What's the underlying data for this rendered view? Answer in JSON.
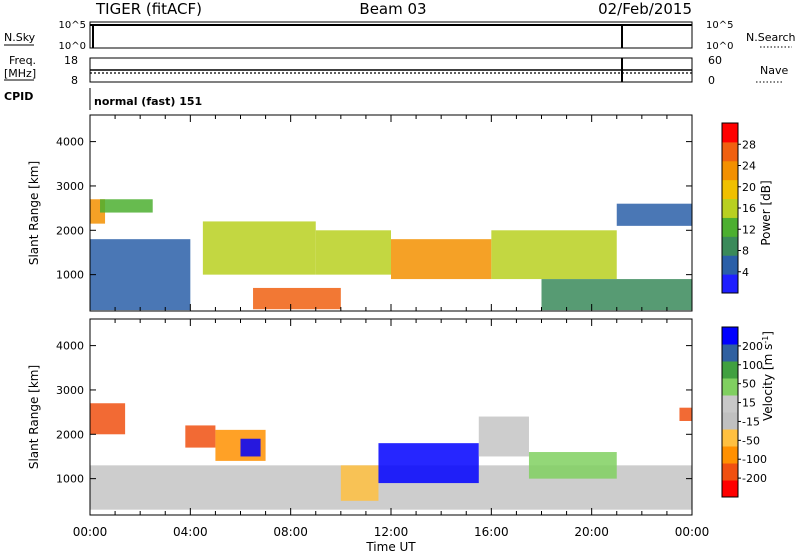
{
  "header": {
    "station": "TIGER (fitACF)",
    "beam": "Beam 03",
    "date": "02/Feb/2015"
  },
  "strip_labels": {
    "nsky": "N.Sky",
    "nsky_top": "10^5",
    "nsky_bottom": "10^0",
    "freq_line1": "Freq.",
    "freq_line2": "[MHz]",
    "freq_top": "18",
    "freq_bottom": "8",
    "nsearch": "N.Search",
    "nsearch_top": "10^5",
    "nsearch_bottom": "10^0",
    "nave": "Nave",
    "nave_top": "60",
    "nave_bottom": "0",
    "cpid": "CPID",
    "cpid_value": "normal (fast) 151"
  },
  "colors": {
    "power_scale": [
      "#1f1fff",
      "#2a5fa8",
      "#3a8a5a",
      "#4caf30",
      "#b8d020",
      "#f0c000",
      "#f39000",
      "#f06010",
      "#ff0000"
    ],
    "velocity_scale": [
      "#ff0000",
      "#f05010",
      "#ff9000",
      "#ffc040",
      "#c0c0c0",
      "#c8c8c8",
      "#80d060",
      "#40a040",
      "#3060a0",
      "#0000ff"
    ],
    "ground_scatter": "#c4c4c4"
  },
  "chart_data": [
    {
      "type": "heatmap",
      "title": "Power [dB]",
      "xlabel": "Time UT",
      "ylabel": "Slant Range [km]",
      "xlim": [
        0,
        24
      ],
      "ylim": [
        180,
        4600
      ],
      "x_ticks": [
        "00:00",
        "04:00",
        "08:00",
        "12:00",
        "16:00",
        "20:00",
        "00:00"
      ],
      "y_ticks": [
        1000,
        2000,
        3000,
        4000
      ],
      "colorbar": {
        "label": "Power [dB]",
        "ticks": [
          4,
          8,
          12,
          16,
          20,
          24,
          28
        ],
        "range": [
          0,
          30
        ]
      },
      "echo_regions": [
        {
          "t": [
            0.0,
            0.6
          ],
          "r": [
            2150,
            2700
          ],
          "value": 20
        },
        {
          "t": [
            0.4,
            2.5
          ],
          "r": [
            2400,
            2700
          ],
          "value": 10
        },
        {
          "t": [
            0.0,
            4.0
          ],
          "r": [
            200,
            1800
          ],
          "value": 6
        },
        {
          "t": [
            4.5,
            9.0
          ],
          "r": [
            1000,
            2200
          ],
          "value": 14
        },
        {
          "t": [
            6.5,
            10.0
          ],
          "r": [
            220,
            700
          ],
          "value": 26
        },
        {
          "t": [
            9.0,
            12.0
          ],
          "r": [
            1000,
            2000
          ],
          "value": 16
        },
        {
          "t": [
            12.0,
            16.0
          ],
          "r": [
            900,
            1800
          ],
          "value": 22
        },
        {
          "t": [
            16.0,
            21.0
          ],
          "r": [
            900,
            2000
          ],
          "value": 14
        },
        {
          "t": [
            18.0,
            24.0
          ],
          "r": [
            200,
            900
          ],
          "value": 8
        },
        {
          "t": [
            21.0,
            24.0
          ],
          "r": [
            2100,
            2600
          ],
          "value": 6
        }
      ]
    },
    {
      "type": "heatmap",
      "title": "Velocity [m s^-1]",
      "xlabel": "Time UT",
      "ylabel": "Slant Range [km]",
      "xlim": [
        0,
        24
      ],
      "ylim": [
        180,
        4600
      ],
      "x_ticks": [
        "00:00",
        "04:00",
        "08:00",
        "12:00",
        "16:00",
        "20:00",
        "00:00"
      ],
      "y_ticks": [
        1000,
        2000,
        3000,
        4000
      ],
      "colorbar": {
        "label": "Velocity [m s^-1]",
        "ticks": [
          200,
          100,
          50,
          15,
          -15,
          -50,
          -100,
          -200
        ],
        "range": [
          -250,
          250
        ]
      },
      "echo_regions": [
        {
          "t": [
            0.0,
            1.4
          ],
          "r": [
            2000,
            2700
          ],
          "value": -200
        },
        {
          "t": [
            3.8,
            5.0
          ],
          "r": [
            1700,
            2200
          ],
          "value": -200
        },
        {
          "t": [
            5.0,
            7.0
          ],
          "r": [
            1400,
            2100
          ],
          "value": -120
        },
        {
          "t": [
            6.0,
            6.8
          ],
          "r": [
            1500,
            1900
          ],
          "value": 200
        },
        {
          "t": [
            0.0,
            24.0
          ],
          "r": [
            300,
            1300
          ],
          "value": 0
        },
        {
          "t": [
            10.0,
            11.5
          ],
          "r": [
            500,
            1300
          ],
          "value": -80
        },
        {
          "t": [
            11.5,
            15.5
          ],
          "r": [
            900,
            1800
          ],
          "value": 220
        },
        {
          "t": [
            15.5,
            17.5
          ],
          "r": [
            1500,
            2400
          ],
          "value": 10
        },
        {
          "t": [
            17.5,
            21.0
          ],
          "r": [
            1000,
            1600
          ],
          "value": 80
        },
        {
          "t": [
            23.5,
            24.0
          ],
          "r": [
            2300,
            2600
          ],
          "value": -200
        }
      ]
    }
  ]
}
